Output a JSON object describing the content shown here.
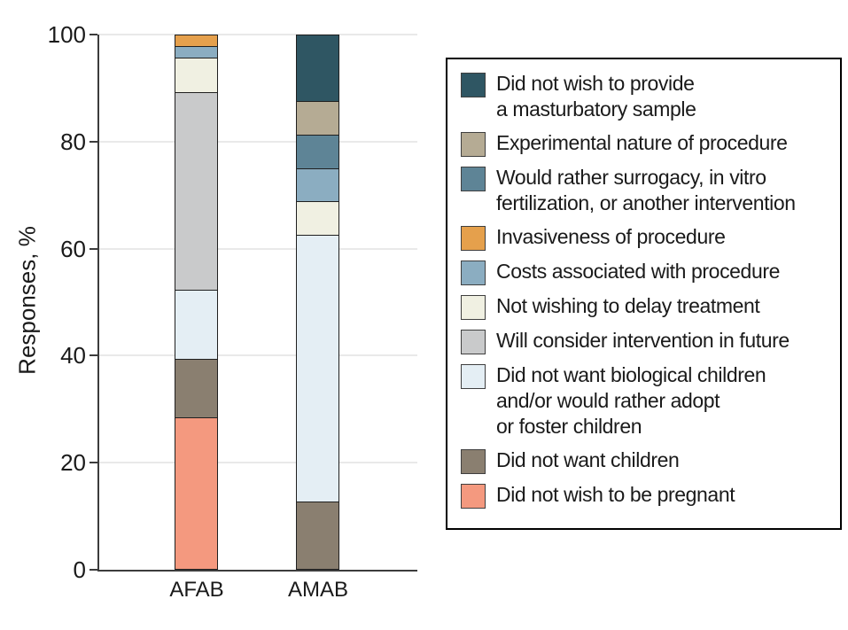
{
  "chart_data": {
    "type": "bar",
    "stacked": true,
    "title": "",
    "xlabel": "",
    "ylabel": "Responses, %",
    "ylim": [
      0,
      100
    ],
    "yticks": [
      0,
      20,
      40,
      60,
      80,
      100
    ],
    "grid": true,
    "legend_position": "right",
    "categories": [
      "AFAB",
      "AMAB"
    ],
    "series": [
      {
        "name": "Did not wish to be pregnant",
        "color": "#f4997f",
        "values": [
          28.26,
          0
        ]
      },
      {
        "name": "Did not want children",
        "color": "#8a7f70",
        "values": [
          10.87,
          12.5
        ]
      },
      {
        "name": "Did not want biological children and/or would rather adopt or foster children",
        "color": "#e4eef4",
        "values": [
          13.04,
          50
        ]
      },
      {
        "name": "Will consider intervention in future",
        "color": "#c9cacb",
        "values": [
          36.96,
          0
        ]
      },
      {
        "name": "Not wishing to delay treatment",
        "color": "#f0f0e2",
        "values": [
          6.52,
          6.25
        ]
      },
      {
        "name": "Costs associated with procedure",
        "color": "#8badc1",
        "values": [
          2.17,
          6.25
        ]
      },
      {
        "name": "Invasiveness of procedure",
        "color": "#e5a04c",
        "values": [
          2.17,
          0
        ]
      },
      {
        "name": "Would rather surrogacy, in vitro fertilization, or another intervention",
        "color": "#5e8496",
        "values": [
          0,
          6.25
        ]
      },
      {
        "name": "Experimental nature of procedure",
        "color": "#b5ab94",
        "values": [
          0,
          6.25
        ]
      },
      {
        "name": "Did not wish to provide a masturbatory sample",
        "color": "#2f5663",
        "values": [
          0,
          12.5
        ]
      }
    ],
    "legend": [
      {
        "label": "Did not wish to provide\na masturbatory sample",
        "color": "#2f5663"
      },
      {
        "label": "Experimental nature of procedure",
        "color": "#b5ab94"
      },
      {
        "label": "Would rather surrogacy, in vitro\nfertilization, or another intervention",
        "color": "#5e8496"
      },
      {
        "label": "Invasiveness of procedure",
        "color": "#e5a04c"
      },
      {
        "label": "Costs associated with procedure",
        "color": "#8badc1"
      },
      {
        "label": "Not wishing to delay treatment",
        "color": "#f0f0e2"
      },
      {
        "label": "Will consider intervention in future",
        "color": "#c9cacb"
      },
      {
        "label": "Did not want biological children\nand/or would rather adopt\nor foster children",
        "color": "#e4eef4"
      },
      {
        "label": "Did not want children",
        "color": "#8a7f70"
      },
      {
        "label": "Did not wish to be pregnant",
        "color": "#f4997f"
      }
    ],
    "colors": {
      "axis": "#3c3c3c",
      "gridline": "#e9e9e9",
      "text": "#1a1a1a",
      "bar_border": "#1f1f1f"
    }
  }
}
